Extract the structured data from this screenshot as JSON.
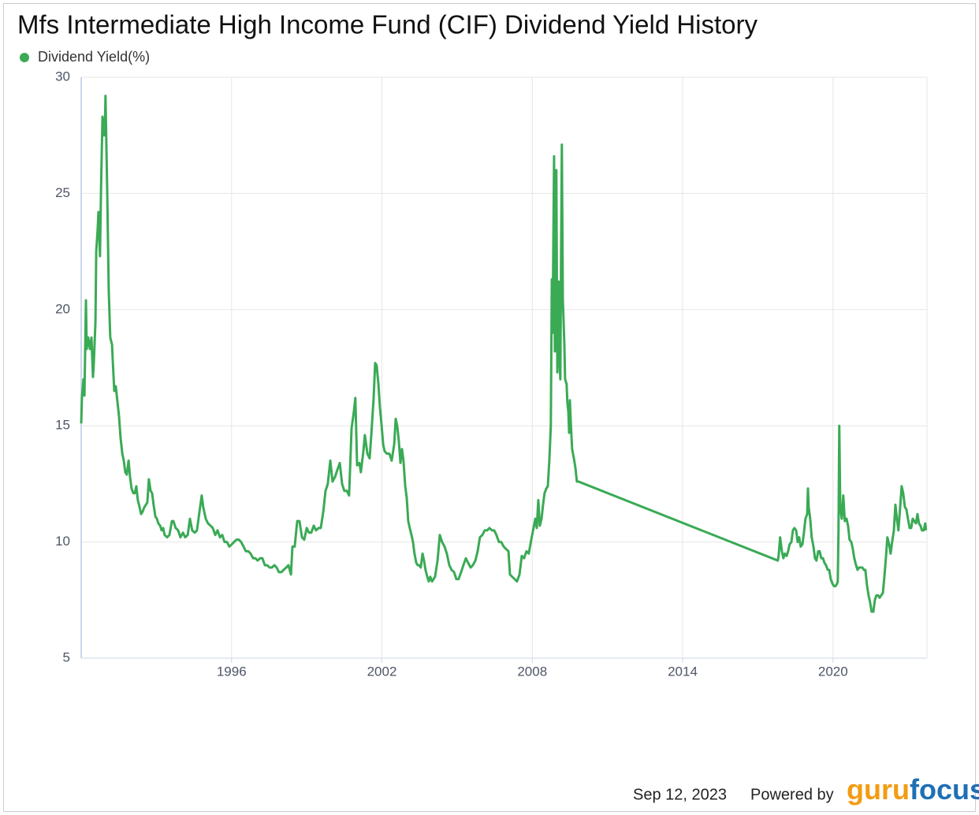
{
  "chart_data": {
    "type": "line",
    "title": "Mfs Intermediate High Income Fund (CIF) Dividend Yield History",
    "xlim": [
      1990,
      2023.75
    ],
    "xticks": [
      1996,
      2002,
      2008,
      2014,
      2020
    ],
    "ylim": [
      5,
      30
    ],
    "yticks": [
      5,
      10,
      15,
      20,
      25,
      30
    ],
    "grid": true,
    "legend": "top-left",
    "series": [
      {
        "name": "Dividend Yield(%)",
        "color": "#3aaa55",
        "x": [
          1990.0,
          1990.03,
          1990.09,
          1990.13,
          1990.19,
          1990.22,
          1990.28,
          1990.35,
          1990.41,
          1990.47,
          1990.5,
          1990.57,
          1990.6,
          1990.66,
          1990.69,
          1990.75,
          1990.79,
          1990.85,
          1990.88,
          1990.91,
          1990.94,
          1990.97,
          1991.04,
          1991.1,
          1991.16,
          1991.23,
          1991.26,
          1991.32,
          1991.38,
          1991.45,
          1991.51,
          1991.57,
          1991.64,
          1991.7,
          1991.76,
          1991.82,
          1991.89,
          1991.95,
          1992.01,
          1992.08,
          1992.14,
          1992.2,
          1992.26,
          1992.33,
          1992.39,
          1992.45,
          1992.52,
          1992.58,
          1992.64,
          1992.7,
          1992.77,
          1992.83,
          1992.89,
          1992.96,
          1993.02,
          1993.08,
          1993.15,
          1993.21,
          1993.27,
          1993.33,
          1993.43,
          1993.52,
          1993.62,
          1993.68,
          1993.77,
          1993.87,
          1993.96,
          1994.06,
          1994.15,
          1994.25,
          1994.34,
          1994.43,
          1994.53,
          1994.62,
          1994.72,
          1994.81,
          1994.87,
          1994.97,
          1995.06,
          1995.16,
          1995.25,
          1995.35,
          1995.44,
          1995.54,
          1995.63,
          1995.72,
          1995.82,
          1995.91,
          1996.01,
          1996.1,
          1996.2,
          1996.29,
          1996.38,
          1996.48,
          1996.57,
          1996.67,
          1996.76,
          1996.86,
          1996.95,
          1997.04,
          1997.14,
          1997.23,
          1997.33,
          1997.42,
          1997.52,
          1997.61,
          1997.71,
          1997.8,
          1997.89,
          1997.99,
          1998.08,
          1998.18,
          1998.27,
          1998.37,
          1998.43,
          1998.52,
          1998.62,
          1998.71,
          1998.81,
          1998.9,
          1999.0,
          1999.09,
          1999.18,
          1999.28,
          1999.37,
          1999.47,
          1999.56,
          1999.66,
          1999.75,
          1999.84,
          1999.94,
          2000.03,
          2000.13,
          2000.22,
          2000.32,
          2000.41,
          2000.5,
          2000.6,
          2000.69,
          2000.79,
          2000.88,
          2000.94,
          2001.01,
          2001.1,
          2001.16,
          2001.26,
          2001.32,
          2001.42,
          2001.51,
          2001.57,
          2001.67,
          2001.73,
          2001.79,
          2001.86,
          2001.92,
          2001.98,
          2002.05,
          2002.11,
          2002.2,
          2002.3,
          2002.39,
          2002.49,
          2002.55,
          2002.61,
          2002.67,
          2002.74,
          2002.8,
          2002.86,
          2002.93,
          2002.99,
          2003.05,
          2003.11,
          2003.18,
          2003.24,
          2003.3,
          2003.37,
          2003.43,
          2003.49,
          2003.55,
          2003.62,
          2003.68,
          2003.74,
          2003.81,
          2003.87,
          2003.93,
          2004.0,
          2004.06,
          2004.12,
          2004.22,
          2004.31,
          2004.4,
          2004.5,
          2004.59,
          2004.69,
          2004.78,
          2004.88,
          2004.97,
          2005.06,
          2005.16,
          2005.25,
          2005.35,
          2005.44,
          2005.54,
          2005.63,
          2005.73,
          2005.82,
          2005.91,
          2006.01,
          2006.1,
          2006.2,
          2006.29,
          2006.39,
          2006.48,
          2006.57,
          2006.67,
          2006.76,
          2006.86,
          2006.95,
          2007.05,
          2007.11,
          2007.2,
          2007.3,
          2007.39,
          2007.49,
          2007.58,
          2007.67,
          2007.77,
          2007.86,
          2007.96,
          2008.05,
          2008.12,
          2008.18,
          2008.24,
          2008.3,
          2008.37,
          2008.43,
          2008.49,
          2008.56,
          2008.62,
          2008.68,
          2008.74,
          2008.78,
          2008.81,
          2008.87,
          2008.9,
          2008.96,
          2009.0,
          2009.03,
          2009.06,
          2009.09,
          2009.12,
          2009.15,
          2009.18,
          2009.22,
          2009.25,
          2009.28,
          2009.31,
          2009.37,
          2009.4,
          2009.44,
          2009.47,
          2009.5,
          2009.53,
          2009.59,
          2009.66,
          2009.72,
          2009.78,
          2009.84,
          2017.8,
          2017.83,
          2017.89,
          2017.96,
          2018.02,
          2018.08,
          2018.15,
          2018.21,
          2018.27,
          2018.34,
          2018.4,
          2018.46,
          2018.53,
          2018.59,
          2018.65,
          2018.71,
          2018.78,
          2018.84,
          2018.9,
          2018.97,
          2019.0,
          2019.03,
          2019.09,
          2019.15,
          2019.22,
          2019.28,
          2019.34,
          2019.41,
          2019.47,
          2019.53,
          2019.6,
          2019.66,
          2019.72,
          2019.79,
          2019.85,
          2019.91,
          2019.98,
          2020.04,
          2020.1,
          2020.16,
          2020.19,
          2020.22,
          2020.25,
          2020.29,
          2020.35,
          2020.41,
          2020.47,
          2020.54,
          2020.6,
          2020.66,
          2020.73,
          2020.79,
          2020.85,
          2020.92,
          2020.98,
          2021.04,
          2021.1,
          2021.17,
          2021.23,
          2021.29,
          2021.36,
          2021.42,
          2021.48,
          2021.54,
          2021.61,
          2021.67,
          2021.73,
          2021.8,
          2021.86,
          2021.92,
          2021.99,
          2022.05,
          2022.11,
          2022.17,
          2022.24,
          2022.3,
          2022.36,
          2022.43,
          2022.49,
          2022.55,
          2022.61,
          2022.68,
          2022.74,
          2022.8,
          2022.87,
          2022.93,
          2022.99,
          2023.06,
          2023.12,
          2023.18,
          2023.24,
          2023.31,
          2023.37,
          2023.43,
          2023.49,
          2023.55,
          2023.62,
          2023.68,
          2023.71
        ],
        "values": [
          15.1,
          16.2,
          17.0,
          16.3,
          20.4,
          18.3,
          18.8,
          18.3,
          18.8,
          17.1,
          17.6,
          19.5,
          22.5,
          23.5,
          24.2,
          22.3,
          25.1,
          28.3,
          27.5,
          28.2,
          27.5,
          29.2,
          25.0,
          20.8,
          18.8,
          18.5,
          17.8,
          16.5,
          16.7,
          16.0,
          15.4,
          14.5,
          13.8,
          13.5,
          13.0,
          12.9,
          13.5,
          12.8,
          12.3,
          12.1,
          12.1,
          12.4,
          11.8,
          11.5,
          11.2,
          11.3,
          11.5,
          11.6,
          11.7,
          12.7,
          12.2,
          12.1,
          11.6,
          11.1,
          11.0,
          10.8,
          10.7,
          10.5,
          10.6,
          10.3,
          10.2,
          10.3,
          10.9,
          10.9,
          10.6,
          10.5,
          10.2,
          10.4,
          10.2,
          10.3,
          11.0,
          10.5,
          10.4,
          10.5,
          11.3,
          12.0,
          11.5,
          11.0,
          10.8,
          10.7,
          10.6,
          10.3,
          10.5,
          10.2,
          10.3,
          10.0,
          10.0,
          9.8,
          9.9,
          10.0,
          10.1,
          10.1,
          10.0,
          9.8,
          9.6,
          9.6,
          9.5,
          9.3,
          9.3,
          9.2,
          9.3,
          9.3,
          9.0,
          9.0,
          8.9,
          8.9,
          9.0,
          8.9,
          8.7,
          8.7,
          8.8,
          8.9,
          9.0,
          8.6,
          9.8,
          9.8,
          10.9,
          10.9,
          10.2,
          10.1,
          10.6,
          10.4,
          10.4,
          10.7,
          10.5,
          10.6,
          10.6,
          11.3,
          12.2,
          12.5,
          13.5,
          12.6,
          12.8,
          13.1,
          13.4,
          12.5,
          12.2,
          12.2,
          12.0,
          14.9,
          15.6,
          16.2,
          13.3,
          13.4,
          13.0,
          13.9,
          14.6,
          13.8,
          13.6,
          14.5,
          16.2,
          17.7,
          17.6,
          16.8,
          15.8,
          15.1,
          14.2,
          13.9,
          13.8,
          13.8,
          13.5,
          14.2,
          15.3,
          15.0,
          14.4,
          13.4,
          14.0,
          13.5,
          12.4,
          11.9,
          10.9,
          10.6,
          10.3,
          10.0,
          9.5,
          9.1,
          9.0,
          9.0,
          8.9,
          9.5,
          9.2,
          8.8,
          8.5,
          8.3,
          8.5,
          8.3,
          8.4,
          8.5,
          9.2,
          10.3,
          10.0,
          9.8,
          9.5,
          9.0,
          8.8,
          8.7,
          8.4,
          8.4,
          8.7,
          9.0,
          9.3,
          9.1,
          8.9,
          9.0,
          9.2,
          9.6,
          10.2,
          10.3,
          10.5,
          10.5,
          10.6,
          10.5,
          10.5,
          10.3,
          10.0,
          10.0,
          9.8,
          9.7,
          9.6,
          8.6,
          8.5,
          8.4,
          8.3,
          8.6,
          9.4,
          9.3,
          9.6,
          9.5,
          10.1,
          10.6,
          11.0,
          10.6,
          11.8,
          10.7,
          11.0,
          11.6,
          12.1,
          12.3,
          12.4,
          13.5,
          15.0,
          21.3,
          19.0,
          26.6,
          18.2,
          26.0,
          17.3,
          20.3,
          21.2,
          17.8,
          17.0,
          22.5,
          27.1,
          20.4,
          19.5,
          18.5,
          17.0,
          16.8,
          16.0,
          15.6,
          14.7,
          16.1,
          15.3,
          14.0,
          13.6,
          13.2,
          12.6,
          12.6,
          9.2,
          9.4,
          10.2,
          9.6,
          9.3,
          9.5,
          9.4,
          9.6,
          9.9,
          10.0,
          10.5,
          10.6,
          10.5,
          10.0,
          10.2,
          9.8,
          9.9,
          10.4,
          11.0,
          11.2,
          12.3,
          11.5,
          11.0,
          10.2,
          9.8,
          9.3,
          9.2,
          9.6,
          9.6,
          9.3,
          9.3,
          9.1,
          9.0,
          8.8,
          8.8,
          8.4,
          8.2,
          8.1,
          8.1,
          8.2,
          8.3,
          10.5,
          15.0,
          11.5,
          11.0,
          12.0,
          10.9,
          11.0,
          10.7,
          10.1,
          10.0,
          9.7,
          9.3,
          9.0,
          8.8,
          8.9,
          8.9,
          8.9,
          8.8,
          8.8,
          8.1,
          7.7,
          7.4,
          7.0,
          7.0,
          7.5,
          7.7,
          7.7,
          7.6,
          7.7,
          7.8,
          8.5,
          9.3,
          10.2,
          9.9,
          9.5,
          10.0,
          10.5,
          11.6,
          11.0,
          10.5,
          11.5,
          12.4,
          12.1,
          11.5,
          11.4,
          11.0,
          10.6,
          10.6,
          11.0,
          10.9,
          10.8,
          11.2,
          10.8,
          10.7,
          10.5,
          10.5,
          10.8,
          10.5
        ]
      }
    ]
  },
  "footer": {
    "date": "Sep 12, 2023",
    "powered_by": "Powered by",
    "logo_guru": "guru",
    "logo_focus": "focus"
  }
}
